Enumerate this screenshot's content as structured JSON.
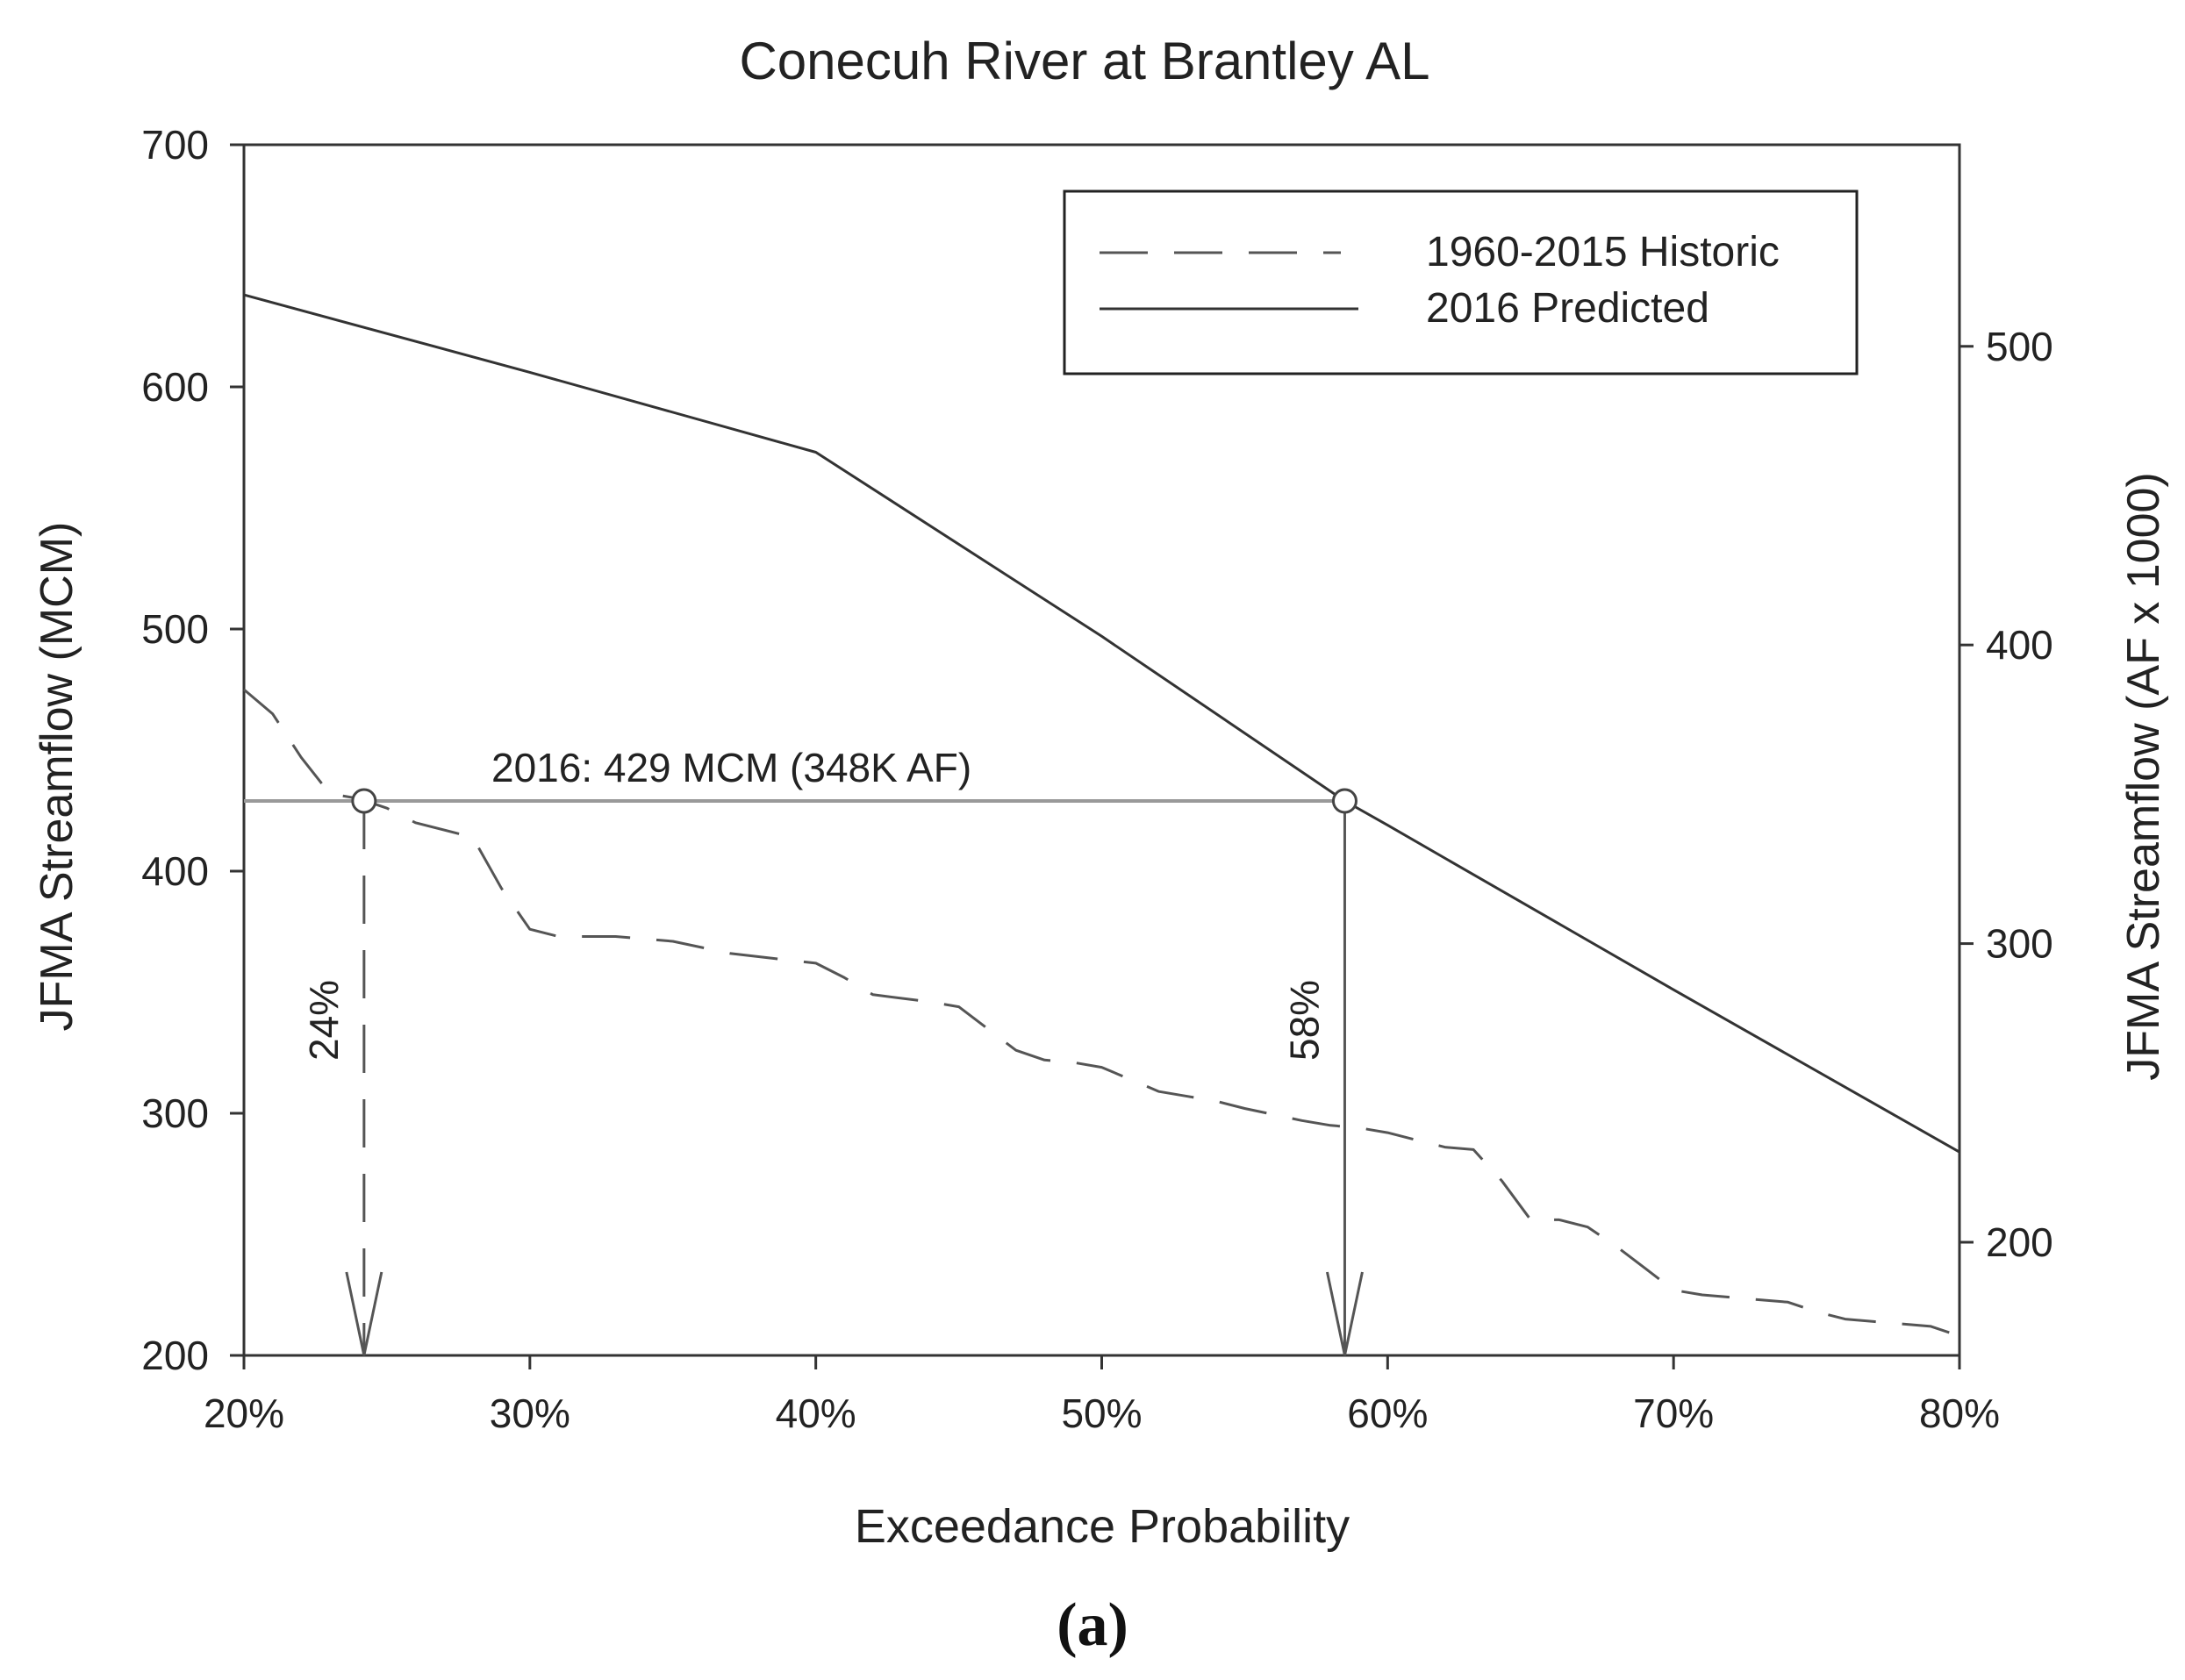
{
  "chart_data": {
    "type": "line",
    "title": "Conecuh River at Brantley AL",
    "xlabel": "Exceedance Probability",
    "ylabel": "JFMA Streamflow (MCM)",
    "y2label": "JFMA Streamflow (AF x 1000)",
    "panel_label": "(a)",
    "xlim": [
      20,
      80
    ],
    "ylim": [
      200,
      700
    ],
    "y2lim": [
      162.1,
      567.5
    ],
    "x_ticks": [
      20,
      30,
      40,
      50,
      60,
      70,
      80
    ],
    "x_tick_labels": [
      "20%",
      "30%",
      "40%",
      "50%",
      "60%",
      "70%",
      "80%"
    ],
    "y_ticks": [
      200,
      300,
      400,
      500,
      600,
      700
    ],
    "y_tick_labels": [
      "200",
      "300",
      "400",
      "500",
      "600",
      "700"
    ],
    "y2_ticks": [
      200,
      300,
      400,
      500
    ],
    "y2_tick_labels": [
      "200",
      "300",
      "400",
      "500"
    ],
    "grid": false,
    "legend_position": "top-right",
    "series": [
      {
        "name": "1960-2015 Historic",
        "style": "dashed",
        "color": "#555555",
        "x": [
          20,
          21,
          22,
          23,
          24,
          25,
          26,
          28,
          29,
          30,
          31,
          33,
          35,
          37,
          40,
          41,
          42,
          44,
          45,
          46,
          47,
          48,
          49,
          50,
          51,
          52,
          53,
          54,
          55,
          57,
          58,
          59,
          60,
          61,
          62,
          63,
          64,
          65,
          66,
          67,
          68,
          69,
          70,
          71,
          72,
          74,
          75,
          76,
          77,
          78,
          79,
          80
        ],
        "values": [
          475,
          465,
          447,
          432,
          430,
          426,
          420,
          414,
          393,
          376,
          373,
          373,
          371,
          366,
          362,
          356,
          349,
          346,
          344,
          335,
          326,
          322,
          321,
          319,
          314,
          309,
          307,
          305,
          302,
          297,
          295,
          294,
          292,
          289,
          286,
          285,
          272,
          256,
          256,
          253,
          245,
          236,
          227,
          225,
          224,
          222,
          218,
          215,
          214,
          213,
          212,
          208
        ]
      },
      {
        "name": "2016 Predicted",
        "style": "solid",
        "color": "#333333",
        "x": [
          20,
          30,
          40,
          50,
          58.5,
          60,
          70,
          80
        ],
        "values": [
          638,
          606,
          573,
          497,
          429,
          419,
          351,
          284
        ]
      }
    ],
    "reference_line": {
      "label": "2016: 429 MCM (348K AF)",
      "y": 429,
      "x_from": 20,
      "x_to": 58.5
    },
    "annotations": [
      {
        "label": "24%",
        "x": 24.2,
        "y_from": 429,
        "y_to": 200,
        "style": "dashed"
      },
      {
        "label": "58%",
        "x": 58.5,
        "y_from": 429,
        "y_to": 200,
        "style": "solid"
      }
    ]
  }
}
